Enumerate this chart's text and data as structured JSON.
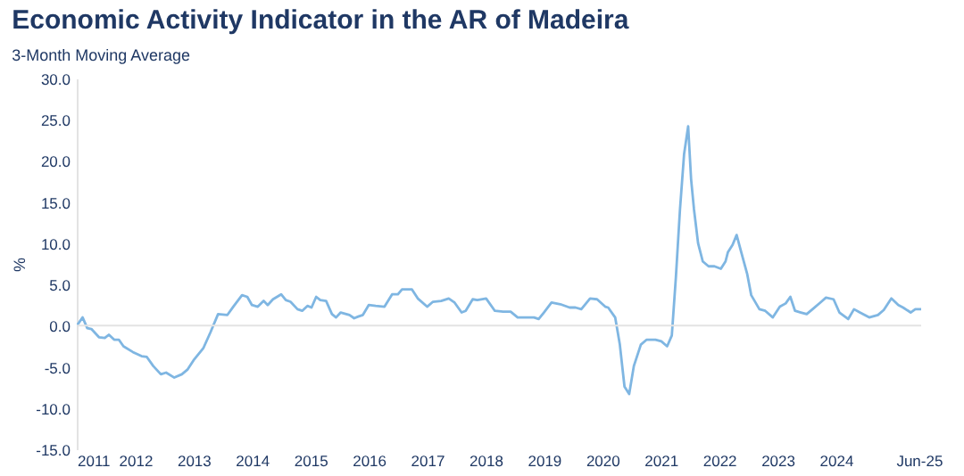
{
  "chart_data": {
    "type": "line",
    "title": "Economic Activity Indicator in the AR of Madeira",
    "subtitle": "3-Month Moving Average",
    "ylabel": "%",
    "x": [
      2011.0,
      2011.1,
      2011.18,
      2011.25,
      2011.38,
      2011.48,
      2011.55,
      2011.64,
      2011.72,
      2011.8,
      2011.96,
      2012.11,
      2012.2,
      2012.31,
      2012.44,
      2012.53,
      2012.67,
      2012.8,
      2012.9,
      2013.0,
      2013.17,
      2013.29,
      2013.42,
      2013.58,
      2013.68,
      2013.83,
      2013.92,
      2014.0,
      2014.1,
      2014.2,
      2014.27,
      2014.36,
      2014.5,
      2014.58,
      2014.66,
      2014.78,
      2014.86,
      2014.95,
      2015.02,
      2015.1,
      2015.17,
      2015.27,
      2015.37,
      2015.44,
      2015.52,
      2015.67,
      2015.75,
      2015.82,
      2015.9,
      2016.0,
      2016.12,
      2016.27,
      2016.4,
      2016.5,
      2016.57,
      2016.74,
      2016.84,
      2017.0,
      2017.1,
      2017.24,
      2017.37,
      2017.47,
      2017.59,
      2017.66,
      2017.78,
      2017.86,
      2018.01,
      2018.16,
      2018.3,
      2018.43,
      2018.55,
      2018.67,
      2018.83,
      2018.91,
      2019.0,
      2019.13,
      2019.28,
      2019.44,
      2019.54,
      2019.64,
      2019.79,
      2019.91,
      2020.05,
      2020.1,
      2020.22,
      2020.3,
      2020.38,
      2020.46,
      2020.54,
      2020.66,
      2020.76,
      2020.91,
      2021.01,
      2021.11,
      2021.19,
      2021.26,
      2021.33,
      2021.4,
      2021.47,
      2021.52,
      2021.57,
      2021.64,
      2021.72,
      2021.82,
      2021.92,
      2022.03,
      2022.11,
      2022.15,
      2022.23,
      2022.3,
      2022.38,
      2022.48,
      2022.55,
      2022.69,
      2022.79,
      2022.92,
      2023.04,
      2023.14,
      2023.22,
      2023.3,
      2023.4,
      2023.5,
      2023.6,
      2023.75,
      2023.83,
      2023.96,
      2024.06,
      2024.21,
      2024.31,
      2024.41,
      2024.57,
      2024.72,
      2024.82,
      2024.95,
      2025.07,
      2025.15,
      2025.28,
      2025.36,
      2025.46
    ],
    "values": [
      0.0,
      1.0,
      -0.3,
      -0.4,
      -1.4,
      -1.5,
      -1.1,
      -1.7,
      -1.7,
      -2.5,
      -3.2,
      -3.7,
      -3.8,
      -4.9,
      -5.9,
      -5.7,
      -6.3,
      -5.9,
      -5.3,
      -4.2,
      -2.7,
      -0.8,
      1.4,
      1.3,
      2.3,
      3.7,
      3.5,
      2.5,
      2.3,
      3.0,
      2.5,
      3.2,
      3.8,
      3.1,
      2.9,
      2.0,
      1.8,
      2.4,
      2.2,
      3.5,
      3.1,
      3.0,
      1.4,
      1.0,
      1.6,
      1.3,
      0.9,
      1.1,
      1.3,
      2.5,
      2.4,
      2.3,
      3.8,
      3.8,
      4.4,
      4.4,
      3.3,
      2.3,
      2.9,
      3.0,
      3.3,
      2.8,
      1.6,
      1.8,
      3.2,
      3.1,
      3.3,
      1.8,
      1.7,
      1.7,
      1.0,
      1.0,
      1.0,
      0.8,
      1.6,
      2.8,
      2.6,
      2.2,
      2.2,
      2.0,
      3.3,
      3.2,
      2.3,
      2.2,
      1.0,
      -2.3,
      -7.4,
      -8.3,
      -4.9,
      -2.3,
      -1.7,
      -1.7,
      -1.9,
      -2.5,
      -1.2,
      5.9,
      14.1,
      20.8,
      24.2,
      17.8,
      14.1,
      10.0,
      7.8,
      7.2,
      7.2,
      6.9,
      7.8,
      8.9,
      9.8,
      11.0,
      8.9,
      6.3,
      3.7,
      2.0,
      1.8,
      1.0,
      2.3,
      2.7,
      3.5,
      1.8,
      1.6,
      1.4,
      2.0,
      2.9,
      3.4,
      3.2,
      1.6,
      0.8,
      2.0,
      1.6,
      1.0,
      1.3,
      1.9,
      3.3,
      2.5,
      2.2,
      1.6,
      2.0,
      2.0
    ],
    "color": "#7fb6e2",
    "xlim": [
      2011.0,
      2025.46
    ],
    "xticks": [
      2011,
      2012,
      2013,
      2014,
      2015,
      2016,
      2017,
      2018,
      2019,
      2020,
      2021,
      2022,
      2023,
      2024,
      {
        "value": 2025.42,
        "label": "Jun-25"
      }
    ],
    "ylim": [
      -15,
      30
    ],
    "yticks": [
      {
        "value": -15,
        "label": "-15.0"
      },
      {
        "value": -10,
        "label": "-10.0"
      },
      {
        "value": -5,
        "label": "-5.0"
      },
      {
        "value": 0,
        "label": "0.0"
      },
      {
        "value": 5,
        "label": "5.0"
      },
      {
        "value": 10,
        "label": "10.0"
      },
      {
        "value": 15,
        "label": "15.0"
      },
      {
        "value": 20,
        "label": "20.0"
      },
      {
        "value": 25,
        "label": "25.0"
      },
      {
        "value": 30,
        "label": "30.0"
      }
    ],
    "ref_lines": [
      {
        "axis": "y",
        "value": 0,
        "color": "#e3e3e3"
      }
    ],
    "grid": false,
    "marker": "none",
    "line_style": "solid"
  }
}
